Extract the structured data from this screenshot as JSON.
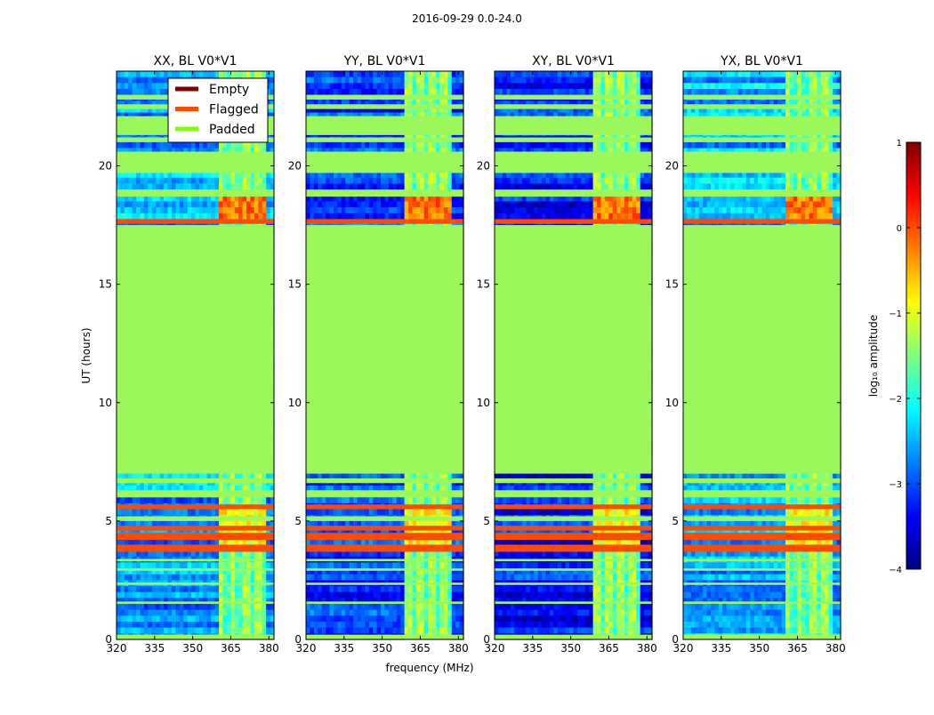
{
  "figure": {
    "suptitle": "2016-09-29 0.0-24.0"
  },
  "colors": {
    "empty": "#7f0000",
    "flagged": "#ff4a00",
    "padded": "#7fff00",
    "padded_fill": "#9cf85a",
    "colormap": [
      "#00007f",
      "#0000ff",
      "#007fff",
      "#00ffff",
      "#7fff7f",
      "#ffff00",
      "#ff7f00",
      "#ff0000",
      "#7f0000"
    ]
  },
  "chart_data": {
    "type": "heatmap",
    "xlabel": "frequency (MHz)",
    "ylabel": "UT (hours)",
    "xlim": [
      320,
      382
    ],
    "ylim": [
      0,
      24
    ],
    "xticks": [
      "320",
      "335",
      "350",
      "365",
      "380"
    ],
    "xtick_values": [
      320,
      335,
      350,
      365,
      380
    ],
    "yticks": [
      "0",
      "5",
      "10",
      "15",
      "20"
    ],
    "ytick_values": [
      0,
      5,
      10,
      15,
      20
    ],
    "legend": {
      "location": "upper-right of first panel",
      "entries": [
        "Empty",
        "Flagged",
        "Padded"
      ]
    },
    "colorbar": {
      "label": "log₁₀ amplitude",
      "range": [
        -4,
        1
      ],
      "ticks": [
        "1",
        "0",
        "−1",
        "−2",
        "−3",
        "−4"
      ],
      "tick_values": [
        1,
        0,
        -1,
        -2,
        -3,
        -4
      ]
    },
    "panels": [
      {
        "title": "XX, BL V0*V1",
        "bright_band_mhz": [
          360,
          379
        ],
        "mean_log_amplitude": -2.6
      },
      {
        "title": "YY, BL V0*V1",
        "bright_band_mhz": [
          359,
          378
        ],
        "mean_log_amplitude": -3.1
      },
      {
        "title": "XY, BL V0*V1",
        "bright_band_mhz": [
          359,
          377
        ],
        "mean_log_amplitude": -3.3
      },
      {
        "title": "YX, BL V0*V1",
        "bright_band_mhz": [
          360,
          379
        ],
        "mean_log_amplitude": -2.5
      }
    ],
    "regions": [
      {
        "label": "Padded",
        "ut_range": [
          0.0,
          0.2
        ]
      },
      {
        "label": "Padded",
        "ut_range": [
          1.5,
          1.6
        ]
      },
      {
        "label": "Padded",
        "ut_range": [
          2.3,
          2.4
        ]
      },
      {
        "label": "Padded",
        "ut_range": [
          2.9,
          3.0
        ]
      },
      {
        "label": "Padded",
        "ut_range": [
          3.3,
          3.4
        ]
      },
      {
        "label": "Flagged",
        "ut_range": [
          3.7,
          4.0
        ]
      },
      {
        "label": "Flagged",
        "ut_range": [
          4.2,
          4.5
        ]
      },
      {
        "label": "Flagged",
        "ut_range": [
          4.6,
          4.8
        ]
      },
      {
        "label": "Padded",
        "ut_range": [
          5.0,
          5.2
        ]
      },
      {
        "label": "Flagged",
        "ut_range": [
          5.5,
          5.7
        ]
      },
      {
        "label": "Padded",
        "ut_range": [
          6.0,
          6.3
        ]
      },
      {
        "label": "Padded",
        "ut_range": [
          6.6,
          6.8
        ]
      },
      {
        "label": "Padded",
        "ut_range": [
          7.0,
          17.5
        ]
      },
      {
        "label": "Flagged",
        "ut_range": [
          17.55,
          17.75
        ]
      },
      {
        "label": "Padded",
        "ut_range": [
          18.7,
          19.0
        ]
      },
      {
        "label": "Padded",
        "ut_range": [
          19.7,
          20.6
        ]
      },
      {
        "label": "Padded",
        "ut_range": [
          21.0,
          21.2
        ]
      },
      {
        "label": "Padded",
        "ut_range": [
          21.3,
          22.1
        ]
      },
      {
        "label": "Padded",
        "ut_range": [
          22.4,
          22.6
        ]
      },
      {
        "label": "Padded",
        "ut_range": [
          22.8,
          23.0
        ]
      }
    ]
  }
}
